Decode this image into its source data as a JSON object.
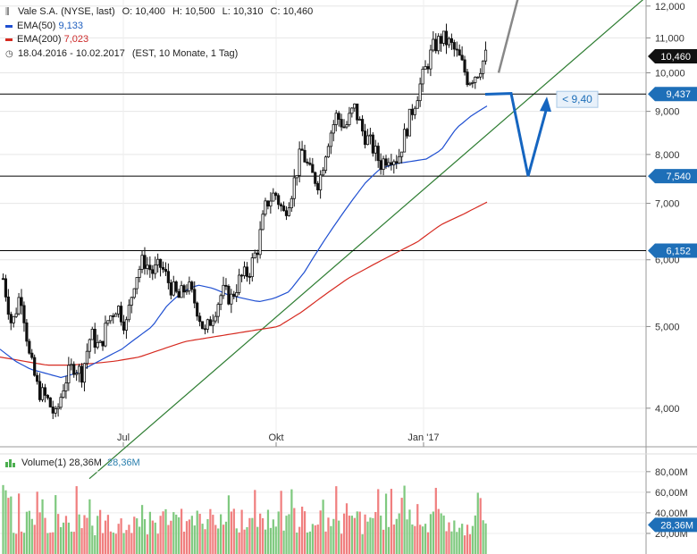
{
  "legend": {
    "symbol": "Vale S.A. (NYSE, last)",
    "open": "O: 10,400",
    "high": "H: 10,500",
    "low": "L: 10,310",
    "close": "C: 10,460",
    "ema50_label": "EMA(50)",
    "ema50_value": "9,133",
    "ema200_label": "EMA(200)",
    "ema200_value": "7,023",
    "period": "18.04.2016 - 10.02.2017",
    "period_info": "(EST, 10 Monate, 1 Tag)"
  },
  "volume_legend": {
    "label": "Volume(1)",
    "value1": "28,36M",
    "value2": "28,36M"
  },
  "colors": {
    "ema50": "#1f4fd1",
    "ema200": "#d62a20",
    "trendline": "#2e7d32",
    "horizontal": "#000000",
    "projection_blue": "#1565c0",
    "projection_gray": "#888888",
    "vol_up": "#7fc97f",
    "vol_down": "#f07f7f",
    "price_tag": "#1e6fb8",
    "annotation_text": "#1e6fb8"
  },
  "chart_data": {
    "type": "candlestick",
    "y_scale": "log",
    "ylim": [
      3.6,
      12.2
    ],
    "y_ticks": [
      "12,000",
      "11,000",
      "10,000",
      "9,000",
      "8,000",
      "7,000",
      "6,000",
      "5,000",
      "4,000"
    ],
    "y_tick_values": [
      12,
      11,
      10,
      9,
      8,
      7,
      6,
      5,
      4
    ],
    "x_ticks": [
      "Jul",
      "Okt",
      "Jan '17"
    ],
    "last_price_label": "10,460",
    "last_price": 10.46,
    "horizontal_levels": [
      {
        "label": "9,437",
        "value": 9.437
      },
      {
        "label": "7,540",
        "value": 7.54
      },
      {
        "label": "6,152",
        "value": 6.152
      }
    ],
    "annotation": "< 9,40",
    "price_path": [
      5.7,
      5.0,
      5.5,
      4.6,
      4.2,
      4.1,
      3.9,
      4.3,
      4.5,
      4.4,
      4.9,
      4.7,
      5.1,
      5.3,
      5.0,
      5.7,
      6.0,
      5.8,
      5.9,
      5.6,
      5.4,
      5.6,
      5.3,
      4.9,
      5.2,
      5.5,
      5.4,
      5.7,
      5.8,
      6.2,
      7.0,
      7.2,
      6.8,
      7.3,
      8.1,
      7.6,
      7.4,
      8.3,
      8.9,
      8.6,
      9.1,
      8.5,
      8.2,
      7.8,
      8.0,
      7.9,
      8.6,
      9.3,
      10.0,
      10.7,
      11.0,
      10.8,
      10.4,
      9.8,
      10.0,
      10.46
    ],
    "ema50_path": [
      4.7,
      4.55,
      4.45,
      4.4,
      4.35,
      4.4,
      4.5,
      4.6,
      4.7,
      4.85,
      5.0,
      5.3,
      5.5,
      5.6,
      5.55,
      5.45,
      5.4,
      5.35,
      5.4,
      5.5,
      5.8,
      6.2,
      6.6,
      7.0,
      7.4,
      7.7,
      7.8,
      7.85,
      7.9,
      8.1,
      8.6,
      8.9,
      9.133
    ],
    "ema200_path": [
      4.6,
      4.55,
      4.5,
      4.5,
      4.52,
      4.55,
      4.6,
      4.7,
      4.8,
      4.85,
      4.9,
      4.95,
      5.0,
      5.2,
      5.45,
      5.7,
      5.9,
      6.1,
      6.3,
      6.6,
      6.8,
      7.023
    ],
    "trendline": {
      "start": 3.3,
      "end": 12.3
    },
    "projection_blue": [
      9.43,
      9.45,
      7.54,
      9.1
    ],
    "projection_gray": [
      10.0,
      12.3
    ],
    "volume": {
      "y_ticks": [
        "80,00M",
        "60,00M",
        "40,00M",
        "20,00M"
      ],
      "y_tick_values": [
        80,
        60,
        40,
        20
      ],
      "last": 28.36,
      "bars_count": 185
    }
  }
}
